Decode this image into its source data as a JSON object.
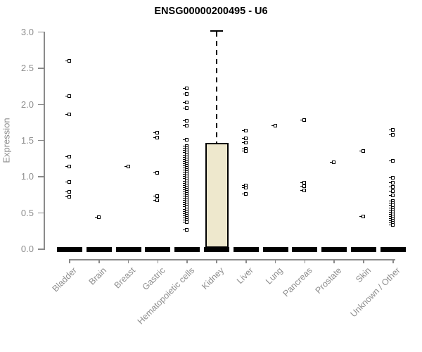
{
  "title": "ENSG00000200495 - U6",
  "colors": {
    "background": "#ffffff",
    "axis": "#8a8a8a",
    "tick_label": "#8e8e8e",
    "title": "#000000",
    "box_fill": "#EEE8CD",
    "box_border": "#000000",
    "marker": "#000000",
    "median_bar": "#000000"
  },
  "chart_data": {
    "type": "boxplot",
    "title": "ENSG00000200495 - U6",
    "xlabel": "",
    "ylabel": "Expression",
    "ylim": [
      0.0,
      3.0
    ],
    "y_ticks": [
      "0.0",
      "0.5",
      "1.0",
      "1.5",
      "2.0",
      "2.5",
      "3.0"
    ],
    "grid": false,
    "legend": false,
    "categories": [
      "Bladder",
      "Brain",
      "Breast",
      "Gastric",
      "Hematopoietic cells",
      "Kidney",
      "Liver",
      "Lung",
      "Pancreas",
      "Prostate",
      "Skin",
      "Unknown / Other"
    ],
    "groups": [
      {
        "label": "Bladder",
        "median": 0,
        "q1": 0,
        "q3": 0,
        "points": [
          2.59,
          2.1,
          1.85,
          1.27,
          1.13,
          0.92,
          0.78,
          0.71
        ]
      },
      {
        "label": "Brain",
        "median": 0,
        "q1": 0,
        "q3": 0,
        "points": [
          0.43
        ]
      },
      {
        "label": "Breast",
        "median": 0,
        "q1": 0,
        "q3": 0,
        "points": [
          1.13
        ]
      },
      {
        "label": "Gastric",
        "median": 0,
        "q1": 0,
        "q3": 0,
        "points": [
          1.6,
          1.53,
          1.04,
          0.72,
          0.66
        ]
      },
      {
        "label": "Hematopoietic cells",
        "median": 0,
        "q1": 0,
        "q3": 0,
        "points": [
          2.21,
          2.13,
          2.02,
          1.94,
          1.76,
          1.69,
          1.5,
          1.41,
          1.38,
          1.35,
          1.32,
          1.29,
          1.26,
          1.23,
          1.2,
          1.17,
          1.14,
          1.11,
          1.08,
          1.05,
          1.02,
          0.99,
          0.96,
          0.93,
          0.9,
          0.87,
          0.84,
          0.81,
          0.78,
          0.75,
          0.72,
          0.69,
          0.66,
          0.63,
          0.6,
          0.57,
          0.54,
          0.51,
          0.48,
          0.45,
          0.42,
          0.39,
          0.36,
          0.25
        ]
      },
      {
        "label": "Kidney",
        "median": 0,
        "q1": 0,
        "q3": 1.46,
        "whisker_high": 3.02,
        "points": []
      },
      {
        "label": "Liver",
        "median": 0,
        "q1": 0,
        "q3": 0,
        "points": [
          1.63,
          1.52,
          1.46,
          1.37,
          1.34,
          0.87,
          0.84,
          0.75
        ]
      },
      {
        "label": "Lung",
        "median": 0,
        "q1": 0,
        "q3": 0,
        "points": [
          1.69
        ]
      },
      {
        "label": "Pancreas",
        "median": 0,
        "q1": 0,
        "q3": 0,
        "points": [
          1.77,
          0.91,
          0.86,
          0.8
        ]
      },
      {
        "label": "Prostate",
        "median": 0,
        "q1": 0,
        "q3": 0,
        "points": [
          1.19
        ]
      },
      {
        "label": "Skin",
        "median": 0,
        "q1": 0,
        "q3": 0,
        "points": [
          1.34,
          0.44
        ]
      },
      {
        "label": "Unknown / Other",
        "median": 0,
        "q1": 0,
        "q3": 0,
        "points": [
          1.64,
          1.57,
          1.21,
          0.97,
          0.91,
          0.85,
          0.79,
          0.73,
          0.65,
          0.62,
          0.59,
          0.56,
          0.53,
          0.5,
          0.47,
          0.44,
          0.41,
          0.38,
          0.35,
          0.32
        ]
      }
    ]
  }
}
